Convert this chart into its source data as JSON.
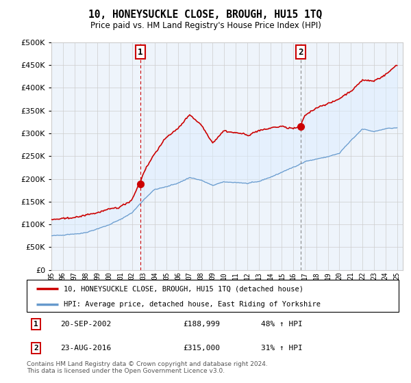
{
  "title": "10, HONEYSUCKLE CLOSE, BROUGH, HU15 1TQ",
  "subtitle": "Price paid vs. HM Land Registry's House Price Index (HPI)",
  "ylim": [
    0,
    500000
  ],
  "xlim_start": 1995.0,
  "xlim_end": 2025.5,
  "x_ticks": [
    1995,
    1996,
    1997,
    1998,
    1999,
    2000,
    2001,
    2002,
    2003,
    2004,
    2005,
    2006,
    2007,
    2008,
    2009,
    2010,
    2011,
    2012,
    2013,
    2014,
    2015,
    2016,
    2017,
    2018,
    2019,
    2020,
    2021,
    2022,
    2023,
    2024,
    2025
  ],
  "purchase1_date": 2002.72,
  "purchase1_price": 188999,
  "purchase2_date": 2016.64,
  "purchase2_price": 315000,
  "legend_line1": "10, HONEYSUCKLE CLOSE, BROUGH, HU15 1TQ (detached house)",
  "legend_line2": "HPI: Average price, detached house, East Riding of Yorkshire",
  "footnote": "Contains HM Land Registry data © Crown copyright and database right 2024.\nThis data is licensed under the Open Government Licence v3.0.",
  "line_color_red": "#cc0000",
  "line_color_blue": "#6699cc",
  "fill_color_blue": "#ddeeff",
  "background_color": "#ffffff",
  "grid_color": "#cccccc",
  "marker_box_color": "#cc0000",
  "hpi_anchors": {
    "1995": 75000,
    "1996": 77000,
    "1997": 80000,
    "1998": 84000,
    "1999": 91000,
    "2000": 100000,
    "2001": 112000,
    "2002": 127000,
    "2003": 155000,
    "2004": 178000,
    "2005": 184000,
    "2006": 192000,
    "2007": 204000,
    "2008": 198000,
    "2009": 185000,
    "2010": 192000,
    "2011": 190000,
    "2012": 188000,
    "2013": 193000,
    "2014": 203000,
    "2015": 213000,
    "2016": 224000,
    "2017": 238000,
    "2018": 244000,
    "2019": 248000,
    "2020": 255000,
    "2021": 283000,
    "2022": 308000,
    "2023": 302000,
    "2024": 310000,
    "2025": 312000
  },
  "red_anchors": {
    "1995": 110000,
    "1996": 112000,
    "1997": 115000,
    "1998": 118000,
    "1999": 122000,
    "2000": 128000,
    "2001": 136000,
    "2002": 150000,
    "2002.72": 188999,
    "2003": 210000,
    "2004": 255000,
    "2005": 290000,
    "2006": 310000,
    "2007": 340000,
    "2008": 315000,
    "2009": 278000,
    "2010": 305000,
    "2011": 300000,
    "2012": 295000,
    "2013": 305000,
    "2014": 310000,
    "2015": 315000,
    "2016": 310000,
    "2016.64": 315000,
    "2017": 340000,
    "2018": 360000,
    "2019": 370000,
    "2020": 380000,
    "2021": 395000,
    "2022": 420000,
    "2023": 415000,
    "2024": 430000,
    "2025": 450000
  }
}
